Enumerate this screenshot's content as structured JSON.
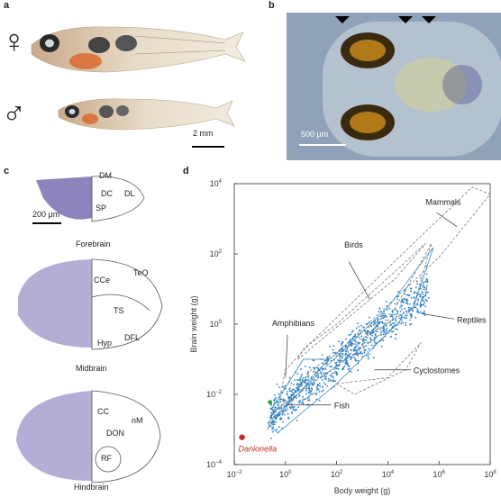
{
  "panels": {
    "a": "a",
    "b": "b",
    "c": "c",
    "d": "d"
  },
  "panel_a": {
    "female_symbol": "♀",
    "male_symbol": "♂",
    "scale": "2 mm"
  },
  "panel_b": {
    "scale": "500 μm"
  },
  "panel_c": {
    "scale": "200 μm",
    "forebrain": {
      "title": "Forebrain",
      "labels": [
        "DM",
        "DC",
        "DL",
        "SP"
      ]
    },
    "midbrain": {
      "title": "Midbrain",
      "labels": [
        "CCe",
        "TeO",
        "TS",
        "DFL",
        "Hyp"
      ]
    },
    "hindbrain": {
      "title": "Hindbrain",
      "labels": [
        "CC",
        "nM",
        "DON",
        "RF"
      ]
    }
  },
  "colors": {
    "histology": "#6a5aa8",
    "plot_blue": "#2a7fc4",
    "danionella": "#c62828",
    "fish_green": "#2e9d3c",
    "tissue_bg": "#8fa3b8"
  },
  "chart_data": {
    "type": "scatter",
    "title": "",
    "xlabel": "Body weight (g)",
    "ylabel": "Brain weight (g)",
    "x_scale": "log",
    "y_scale": "log",
    "xlim": [
      0.01,
      100000000
    ],
    "ylim": [
      0.0001,
      10000
    ],
    "x_ticks": [
      {
        "v": 0.01,
        "b": "10",
        "e": "−2"
      },
      {
        "v": 1,
        "b": "10",
        "e": "0"
      },
      {
        "v": 100,
        "b": "10",
        "e": "2"
      },
      {
        "v": 10000,
        "b": "10",
        "e": "4"
      },
      {
        "v": 1000000,
        "b": "10",
        "e": "6"
      },
      {
        "v": 100000000,
        "b": "10",
        "e": "8"
      }
    ],
    "y_ticks": [
      {
        "v": 0.0001,
        "b": "10",
        "e": "−4"
      },
      {
        "v": 0.01,
        "b": "10",
        "e": "−2"
      },
      {
        "v": 1,
        "b": "10",
        "e": "0"
      },
      {
        "v": 100,
        "b": "10",
        "e": "2"
      },
      {
        "v": 10000,
        "b": "10",
        "e": "4"
      }
    ],
    "groups": [
      "Mammals",
      "Birds",
      "Reptiles",
      "Amphibians",
      "Cyclostomes",
      "Fish"
    ],
    "highlight": {
      "name": "Danionella",
      "x": 0.02,
      "y": 0.0006
    },
    "fish_highlight": {
      "x": 0.25,
      "y": 0.006
    }
  }
}
